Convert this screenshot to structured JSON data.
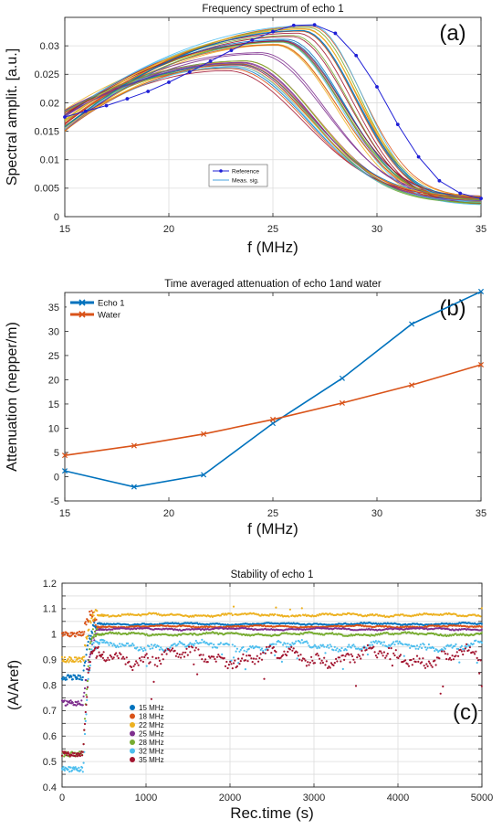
{
  "chart_data": [
    {
      "id": "a",
      "type": "line",
      "title": "Frequency spectrum of echo 1",
      "panel_label": "(a)",
      "xlabel": "f (MHz)",
      "ylabel": "Spectral amplit. [a.u.]",
      "xlim": [
        15,
        35
      ],
      "ylim": [
        0,
        0.035
      ],
      "xticks": [
        15,
        20,
        25,
        30,
        35
      ],
      "xtick_labels": [
        "15",
        "20",
        "25",
        "30",
        "35"
      ],
      "yticks": [
        0,
        0.005,
        0.01,
        0.015,
        0.02,
        0.025,
        0.03
      ],
      "ytick_labels": [
        "0",
        "0.005",
        "0.01",
        "0.015",
        "0.02",
        "0.025",
        "0.03"
      ],
      "grid": true,
      "legend": {
        "position": "lower-center",
        "entries": [
          {
            "label": "Reference",
            "color": "#1f1fd6",
            "marker": "dot"
          },
          {
            "label": "Meas. sig.",
            "color": "#4aa3df",
            "marker": "none"
          }
        ]
      },
      "reference": {
        "name": "Reference",
        "color": "#1f1fd6",
        "x": [
          15,
          16,
          17,
          18,
          19,
          20,
          21,
          22,
          23,
          24,
          25,
          26,
          27,
          28,
          29,
          30,
          31,
          32,
          33,
          34,
          35
        ],
        "y": [
          0.0175,
          0.0185,
          0.0195,
          0.0207,
          0.022,
          0.0236,
          0.0254,
          0.0273,
          0.0292,
          0.031,
          0.0325,
          0.0336,
          0.0337,
          0.0322,
          0.0283,
          0.0228,
          0.0162,
          0.0105,
          0.0063,
          0.0041,
          0.0032
        ]
      },
      "measured_bundle": {
        "name": "Meas. sig.",
        "count": 40,
        "peak_f_range": [
          21.8,
          27.0
        ],
        "peak_amp_range": [
          0.0237,
          0.0338
        ],
        "low_edge_amp_range": [
          0.0148,
          0.0188
        ],
        "high_edge_amp_range": [
          0.002,
          0.0037
        ],
        "colors": [
          "#0072bd",
          "#d95319",
          "#edb120",
          "#7e2f8e",
          "#77ac30",
          "#4dbeee",
          "#a2142f"
        ]
      }
    },
    {
      "id": "b",
      "type": "line",
      "title": "Time averaged attenuation of echo 1and water",
      "panel_label": "(b)",
      "xlabel": "f (MHz)",
      "ylabel": "Attenuation (nepper/m)",
      "xlim": [
        15,
        35
      ],
      "ylim": [
        -5,
        38
      ],
      "xticks": [
        15,
        20,
        25,
        30,
        35
      ],
      "xtick_labels": [
        "15",
        "20",
        "25",
        "30",
        "35"
      ],
      "yticks": [
        -5,
        0,
        5,
        10,
        15,
        20,
        25,
        30,
        35
      ],
      "ytick_labels": [
        "-5",
        "0",
        "5",
        "10",
        "15",
        "20",
        "25",
        "30",
        "35"
      ],
      "grid": false,
      "legend": {
        "position": "top-left"
      },
      "series": [
        {
          "name": "Echo 1",
          "color": "#0072bd",
          "x": [
            15,
            18.33,
            21.67,
            25,
            28.33,
            31.67,
            35
          ],
          "y": [
            1.2,
            -2.1,
            0.4,
            11.0,
            20.3,
            31.5,
            38.2
          ]
        },
        {
          "name": "Water",
          "color": "#d95319",
          "x": [
            15,
            18.33,
            21.67,
            25,
            28.33,
            31.67,
            35
          ],
          "y": [
            4.4,
            6.4,
            8.8,
            11.8,
            15.2,
            18.9,
            23.1
          ]
        }
      ]
    },
    {
      "id": "c",
      "type": "scatter",
      "title": "Stability of echo 1",
      "panel_label": "(c)",
      "xlabel": "Rec.time (s)",
      "ylabel": "(A/Aref)",
      "xlim": [
        0,
        5000
      ],
      "ylim": [
        0.4,
        1.2
      ],
      "xticks": [
        0,
        1000,
        2000,
        3000,
        4000,
        5000
      ],
      "xtick_labels": [
        "0",
        "1000",
        "2000",
        "3000",
        "4000",
        "5000"
      ],
      "yticks": [
        0.4,
        0.45,
        0.5,
        0.55,
        0.6,
        0.65,
        0.7,
        0.75,
        0.8,
        0.85,
        0.9,
        0.95,
        1,
        1.05,
        1.1,
        1.15,
        1.2
      ],
      "ytick_labels": [
        "0.4",
        "0.45",
        "0.5",
        "0.55",
        "0.6",
        "0.65",
        "0.7",
        "0.75",
        "0.8",
        "0.85",
        "0.9",
        "0.95",
        "1",
        "1.05",
        "1.1",
        "1.15",
        "1.2"
      ],
      "grid": true,
      "legend": {
        "position": "lower-left"
      },
      "series": [
        {
          "name": "15 MHz",
          "color": "#0072bd",
          "start": 0.83,
          "steady": 1.04,
          "noise": 0.004
        },
        {
          "name": "18 MHz",
          "color": "#d95319",
          "start": 1.0,
          "steady": 1.03,
          "noise": 0.004
        },
        {
          "name": "22 MHz",
          "color": "#edb120",
          "start": 0.9,
          "steady": 1.075,
          "noise": 0.006
        },
        {
          "name": "25 MHz",
          "color": "#7e2f8e",
          "start": 0.73,
          "steady": 1.02,
          "noise": 0.004
        },
        {
          "name": "28 MHz",
          "color": "#77ac30",
          "start": 0.53,
          "steady": 1.0,
          "noise": 0.006
        },
        {
          "name": "32 MHz",
          "color": "#4dbeee",
          "start": 0.47,
          "steady": 0.955,
          "noise": 0.018
        },
        {
          "name": "35 MHz",
          "color": "#a2142f",
          "start": 0.53,
          "steady": 0.91,
          "noise": 0.035
        }
      ]
    }
  ]
}
